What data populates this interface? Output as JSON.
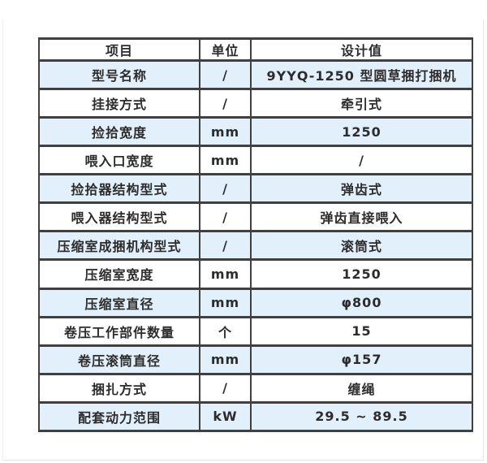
{
  "page": {
    "background_color": "#ffffff",
    "frame_border_color": "#e9e9e9"
  },
  "table": {
    "style": {
      "stripe_color": "#e2f0fb",
      "border_color": "#404040",
      "text_color": "#2c2c2c"
    },
    "headers": [
      "项目",
      "单位",
      "设计值"
    ],
    "rows": [
      [
        "型号名称",
        "/",
        "9YYQ-1250 型圆草捆打捆机"
      ],
      [
        "挂接方式",
        "/",
        "牵引式"
      ],
      [
        "捡拾宽度",
        "mm",
        "1250"
      ],
      [
        "喂入口宽度",
        "mm",
        "/"
      ],
      [
        "捡拾器结构型式",
        "/",
        "弹齿式"
      ],
      [
        "喂入器结构型式",
        "/",
        "弹齿直接喂入"
      ],
      [
        "压缩室成捆机构型式",
        "/",
        "滚筒式"
      ],
      [
        "压缩室宽度",
        "mm",
        "1250"
      ],
      [
        "压缩室直径",
        "mm",
        "φ800"
      ],
      [
        "卷压工作部件数量",
        "个",
        "15"
      ],
      [
        "卷压滚筒直径",
        "mm",
        "φ157"
      ],
      [
        "捆扎方式",
        "/",
        "缠绳"
      ],
      [
        "配套动力范围",
        "kW",
        "29.5 ~ 89.5"
      ]
    ]
  }
}
